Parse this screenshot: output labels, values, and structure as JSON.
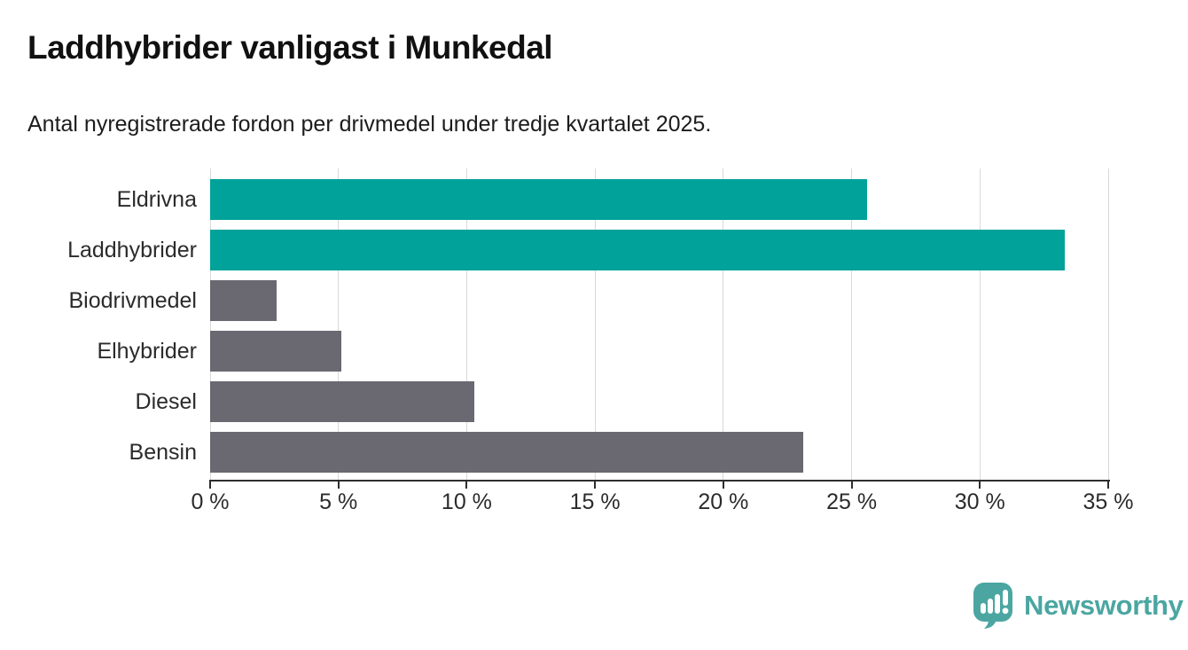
{
  "header": {
    "title": "Laddhybrider vanligast i Munkedal",
    "subtitle": "Antal nyregistrerade fordon per drivmedel under tredje kvartalet 2025."
  },
  "chart_data": {
    "type": "bar",
    "orientation": "horizontal",
    "title": "Laddhybrider vanligast i Munkedal",
    "subtitle": "Antal nyregistrerade fordon per drivmedel under tredje kvartalet 2025.",
    "categories": [
      "Eldrivna",
      "Laddhybrider",
      "Biodrivmedel",
      "Elhybrider",
      "Diesel",
      "Bensin"
    ],
    "values": [
      25.6,
      33.3,
      2.6,
      5.1,
      10.3,
      23.1
    ],
    "unit": "%",
    "xlim": [
      0,
      35
    ],
    "x_ticks": [
      0,
      5,
      10,
      15,
      20,
      25,
      30,
      35
    ],
    "x_tick_labels": [
      "0 %",
      "5 %",
      "10 %",
      "15 %",
      "20 %",
      "25 %",
      "30 %",
      "35 %"
    ],
    "bar_colors": [
      "#00a29a",
      "#00a29a",
      "#6a6870",
      "#6a6870",
      "#6a6870",
      "#6a6870"
    ],
    "highlight_color": "#00a29a",
    "default_color": "#6a6870",
    "grid": true,
    "gridline_color": "#d9d9d9",
    "legend": "none"
  },
  "footer": {
    "brand": "Newsworthy",
    "brand_color": "#4ba6a1"
  }
}
